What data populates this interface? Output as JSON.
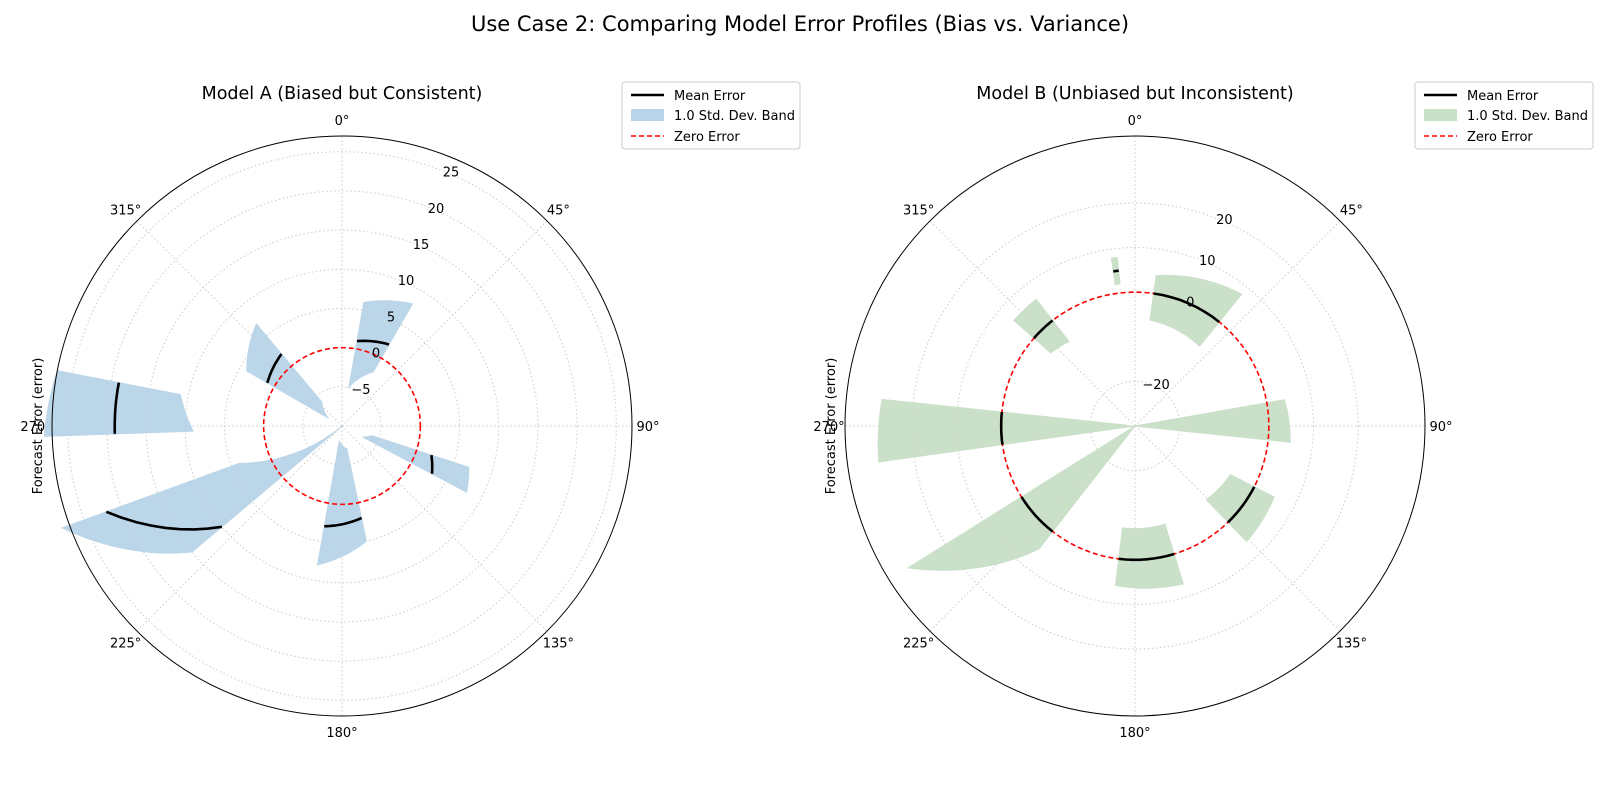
{
  "figure": {
    "suptitle": "Use Case 2: Comparing Model Error Profiles (Bias vs. Variance)"
  },
  "chart_data": [
    {
      "type": "polar-area",
      "title": "Model A (Biased but Consistent)",
      "ylabel": "Forecast Error (error)",
      "angle_ticks": [
        "0°",
        "45°",
        "90°",
        "135°",
        "180°",
        "225°",
        "270°",
        "315°"
      ],
      "radial_ticks": [
        "−5",
        "0",
        "5",
        "10",
        "15",
        "20",
        "25"
      ],
      "rlim": [
        -10,
        27
      ],
      "zero_reference": 0,
      "grid": true,
      "legend_position": "upper-right-outside",
      "colors": {
        "band": "#b9d4e8",
        "mean": "#000000",
        "zero": "#ff0000"
      },
      "series": [
        {
          "name": "Mean Error",
          "style": "line"
        },
        {
          "name": "1.0 Std. Dev. Band",
          "style": "band"
        },
        {
          "name": "Zero Error",
          "style": "dashed"
        }
      ],
      "sectors": [
        {
          "theta_start": 10,
          "theta_end": 30,
          "mean": [
            1,
            2
          ],
          "low": [
            -5,
            -2
          ],
          "high": [
            6,
            8
          ]
        },
        {
          "theta_start": 108,
          "theta_end": 118,
          "mean": [
            2,
            3
          ],
          "low": [
            -6,
            -7
          ],
          "high": [
            7,
            8
          ]
        },
        {
          "theta_start": 168,
          "theta_end": 190,
          "mean": [
            2,
            3
          ],
          "low": [
            -7,
            -8
          ],
          "high": [
            5,
            8
          ]
        },
        {
          "theta_start": 230,
          "theta_end": 250,
          "mean": [
            10,
            22
          ],
          "low": [
            -10,
            4
          ],
          "high": [
            15,
            28
          ]
        },
        {
          "theta_start": 268,
          "theta_end": 281,
          "mean": [
            19,
            19
          ],
          "low": [
            9,
            11
          ],
          "high": [
            28,
            27
          ]
        },
        {
          "theta_start": 300,
          "theta_end": 320,
          "mean": [
            1,
            2
          ],
          "low": [
            -8,
            -6
          ],
          "high": [
            4,
            7
          ]
        }
      ]
    },
    {
      "type": "polar-area",
      "title": "Model B (Unbiased but Inconsistent)",
      "ylabel": "Forecast Error (error)",
      "angle_ticks": [
        "0°",
        "45°",
        "90°",
        "135°",
        "180°",
        "225°",
        "270°",
        "315°"
      ],
      "radial_ticks": [
        "−20",
        "0",
        "10",
        "20"
      ],
      "rlim": [
        -30,
        35
      ],
      "zero_reference": 0,
      "grid": true,
      "legend_position": "upper-right-outside",
      "colors": {
        "band": "#c9dfc7",
        "mean": "#000000",
        "zero": "#ff0000"
      },
      "series": [
        {
          "name": "Mean Error",
          "style": "line"
        },
        {
          "name": "1.0 Std. Dev. Band",
          "style": "band"
        },
        {
          "name": "Zero Error",
          "style": "dashed"
        }
      ],
      "sectors": [
        {
          "theta_start": 8,
          "theta_end": 39,
          "mean": [
            0,
            0
          ],
          "low": [
            -6,
            -7
          ],
          "high": [
            4,
            8
          ]
        },
        {
          "theta_start": 80,
          "theta_end": 96,
          "mean": [
            -40,
            -40
          ],
          "low": [
            -40,
            -40
          ],
          "high": [
            4,
            5
          ]
        },
        {
          "theta_start": 117,
          "theta_end": 136,
          "mean": [
            0,
            0
          ],
          "low": [
            -6,
            -7
          ],
          "high": [
            5,
            6
          ]
        },
        {
          "theta_start": 163,
          "theta_end": 187,
          "mean": [
            0,
            0
          ],
          "low": [
            -7,
            -7
          ],
          "high": [
            7,
            6
          ]
        },
        {
          "theta_start": 218,
          "theta_end": 238,
          "mean": [
            0,
            0
          ],
          "low": [
            -30,
            -30
          ],
          "high": [
            5,
            30
          ]
        },
        {
          "theta_start": 262,
          "theta_end": 276,
          "mean": [
            0,
            0
          ],
          "low": [
            -30,
            -28
          ],
          "high": [
            28,
            27
          ]
        },
        {
          "theta_start": 311,
          "theta_end": 322,
          "mean": [
            0,
            0
          ],
          "low": [
            -5,
            -6
          ],
          "high": [
            6,
            6
          ]
        },
        {
          "theta_start": 352,
          "theta_end": 354,
          "mean": [
            5,
            5
          ],
          "low": [
            2,
            2
          ],
          "high": [
            8,
            8
          ]
        }
      ]
    }
  ]
}
